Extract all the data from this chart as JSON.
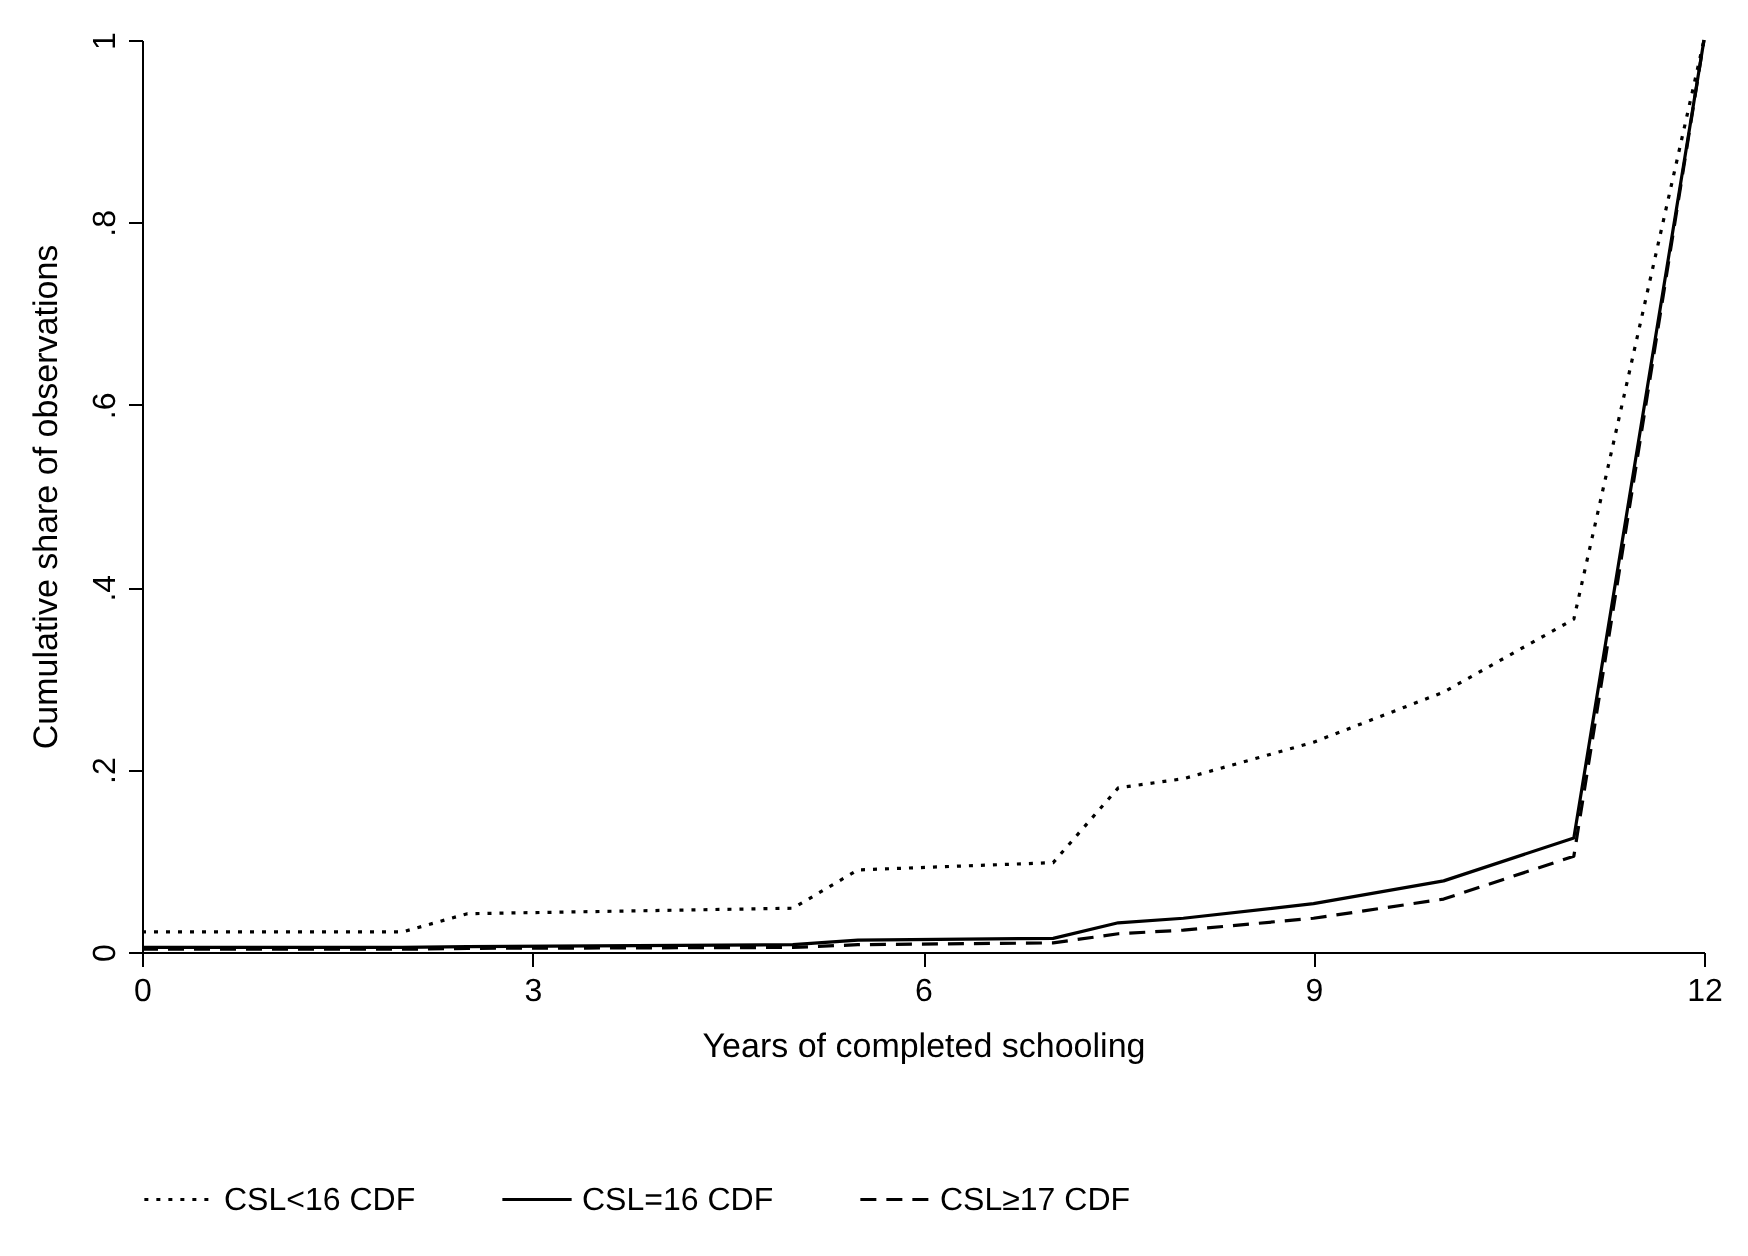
{
  "chart_data": {
    "type": "line",
    "xlabel": "Years of completed schooling",
    "ylabel": "Cumulative share of observations",
    "x": [
      0,
      2,
      2.5,
      5,
      5.5,
      7,
      7.5,
      8,
      9,
      10,
      11,
      12
    ],
    "series": [
      {
        "name": "CSL<16 CDF",
        "color": "#000000",
        "line_style": "dotted",
        "values": [
          0.022,
          0.022,
          0.042,
          0.048,
          0.09,
          0.098,
          0.18,
          0.19,
          0.23,
          0.285,
          0.365,
          1
        ]
      },
      {
        "name": "CSL=16 CDF",
        "color": "#000000",
        "line_style": "solid",
        "values": [
          0.005,
          0.005,
          0.006,
          0.008,
          0.013,
          0.015,
          0.032,
          0.037,
          0.053,
          0.078,
          0.125,
          1
        ]
      },
      {
        "name": "CSL≥17 CDF",
        "color": "#000000",
        "line_style": "dashed",
        "values": [
          0.003,
          0.003,
          0.004,
          0.005,
          0.008,
          0.01,
          0.02,
          0.024,
          0.037,
          0.058,
          0.105,
          1
        ]
      }
    ],
    "xlim": [
      0,
      12
    ],
    "xticks": [
      0,
      3,
      6,
      9,
      12
    ],
    "ylim": [
      0,
      1
    ],
    "yticks": [
      {
        "value": 0,
        "label": "0"
      },
      {
        "value": 0.2,
        "label": ".2"
      },
      {
        "value": 0.4,
        "label": ".4"
      },
      {
        "value": 0.6,
        "label": ".6"
      },
      {
        "value": 0.8,
        "label": ".8"
      },
      {
        "value": 1,
        "label": "1"
      }
    ],
    "grid": false,
    "legend": "bottom",
    "marker": "none"
  }
}
